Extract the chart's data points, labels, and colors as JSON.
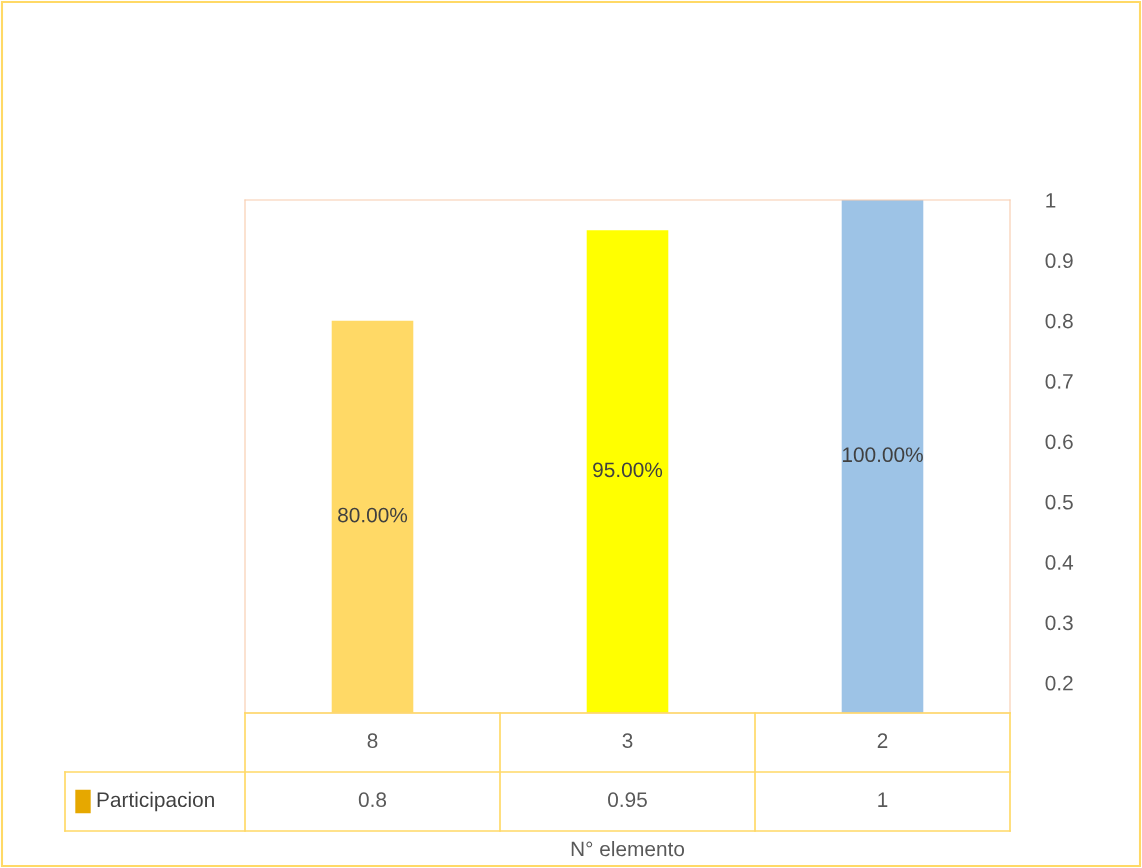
{
  "chart_data": {
    "type": "bar",
    "xlabel": "N° elemento",
    "categories": [
      "8",
      "3",
      "2"
    ],
    "series": [
      {
        "name": "Participacion",
        "color": "#e6a800",
        "colors": [
          "#ffd966",
          "#ffff00",
          "#9dc3e6"
        ],
        "values": [
          0.8,
          0.95,
          1
        ],
        "value_labels": [
          "80.00%",
          "95.00%",
          "100.00%"
        ]
      }
    ],
    "ylim": [
      0.15,
      1
    ],
    "yticks": [
      0.2,
      0.3,
      0.4,
      0.5,
      0.6,
      0.7,
      0.8,
      0.9,
      1
    ],
    "grid": false,
    "annotations": [
      "0.8",
      "0.95",
      "1"
    ]
  }
}
